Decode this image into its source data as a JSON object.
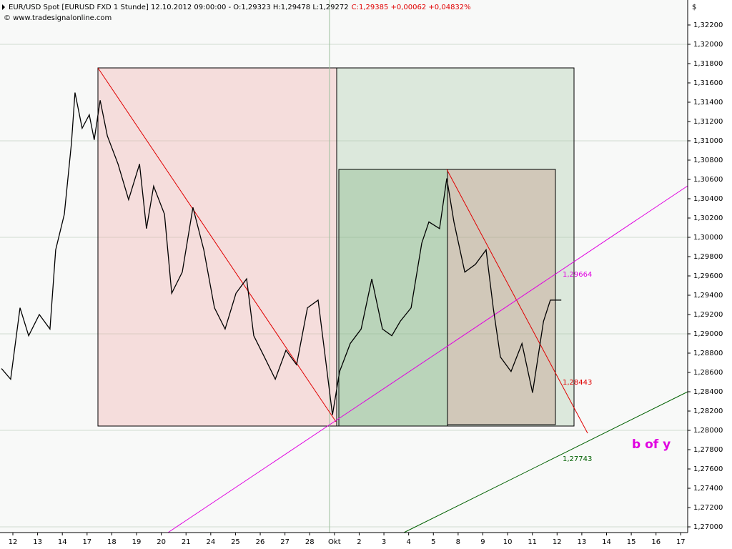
{
  "header": {
    "instrument": "EUR/USD Spot [EURUSD FXD  1 Stunde] 12.10.2012 09:00:00 - O:1,29323 H:1,29478 L:1,29272",
    "close_info": "C:1,29385 +0,00062 +0,04832%",
    "source": "© www.tradesignalonline.com",
    "currency": "$"
  },
  "chart_data": {
    "type": "line",
    "color": "#000000",
    "grid": true,
    "series": [
      {
        "name": "EUR/USD",
        "color": "#000000",
        "x": [
          -0.46,
          -0.09,
          0.29,
          0.64,
          1.07,
          1.5,
          1.73,
          2.08,
          2.37,
          2.51,
          2.8,
          3.09,
          3.29,
          3.53,
          3.82,
          4.25,
          4.68,
          5.12,
          5.4,
          5.69,
          6.13,
          6.42,
          6.85,
          7.28,
          7.72,
          8.15,
          8.58,
          9.02,
          9.45,
          9.74,
          10.17,
          10.61,
          11.04,
          11.47,
          11.91,
          12.34,
          12.63,
          12.92,
          13.21,
          13.64,
          14.08,
          14.51,
          14.94,
          15.32,
          15.66,
          16.1,
          16.53,
          16.82,
          17.25,
          17.54,
          17.83,
          18.27,
          18.7,
          19.13,
          19.42,
          19.71,
          20.14,
          20.58,
          21.01,
          21.45,
          21.73,
          22.17
        ],
        "values": [
          1.2864,
          1.2853,
          1.2927,
          1.2898,
          1.292,
          1.2905,
          1.2987,
          1.3024,
          1.3098,
          1.315,
          1.3113,
          1.3127,
          1.3101,
          1.3142,
          1.3105,
          1.3076,
          1.3039,
          1.3076,
          1.3009,
          1.3053,
          1.3024,
          1.2942,
          1.2964,
          1.3031,
          1.2987,
          1.2927,
          1.2905,
          1.2942,
          1.2957,
          1.2898,
          1.2876,
          1.2853,
          1.2883,
          1.2868,
          1.2927,
          1.2935,
          1.2876,
          1.2816,
          1.2861,
          1.289,
          1.2905,
          1.2957,
          1.2905,
          1.2898,
          1.2913,
          1.2927,
          1.2994,
          1.3016,
          1.3009,
          1.3061,
          1.3016,
          1.2964,
          1.2972,
          1.2987,
          1.2927,
          1.2876,
          1.2861,
          1.289,
          1.2839,
          1.2913,
          1.2935,
          1.2935
        ]
      }
    ],
    "xlim": [
      -0.52,
      27.28
    ],
    "xticks": [
      {
        "value": 0,
        "label": "12"
      },
      {
        "value": 1,
        "label": "13"
      },
      {
        "value": 2,
        "label": "14"
      },
      {
        "value": 3,
        "label": "17"
      },
      {
        "value": 4,
        "label": "18"
      },
      {
        "value": 5,
        "label": "19"
      },
      {
        "value": 6,
        "label": "20"
      },
      {
        "value": 7,
        "label": "21"
      },
      {
        "value": 8,
        "label": "24"
      },
      {
        "value": 9,
        "label": "25"
      },
      {
        "value": 10,
        "label": "26"
      },
      {
        "value": 11,
        "label": "27"
      },
      {
        "value": 12,
        "label": "28"
      },
      {
        "value": 13,
        "label": "Okt"
      },
      {
        "value": 14,
        "label": "2"
      },
      {
        "value": 15,
        "label": "3"
      },
      {
        "value": 16,
        "label": "4"
      },
      {
        "value": 17,
        "label": "5"
      },
      {
        "value": 18,
        "label": "8"
      },
      {
        "value": 19,
        "label": "9"
      },
      {
        "value": 20,
        "label": "10"
      },
      {
        "value": 21,
        "label": "11"
      },
      {
        "value": 22,
        "label": "12"
      },
      {
        "value": 23,
        "label": "13"
      },
      {
        "value": 24,
        "label": "14"
      },
      {
        "value": 25,
        "label": "15"
      },
      {
        "value": 26,
        "label": "16"
      },
      {
        "value": 27,
        "label": "17"
      }
    ],
    "ylim": [
      1.26941,
      1.32459
    ],
    "yticks": [
      {
        "value": 1.27,
        "label": "1,27000"
      },
      {
        "value": 1.272,
        "label": "1,27200"
      },
      {
        "value": 1.274,
        "label": "1,27400"
      },
      {
        "value": 1.276,
        "label": "1,27600"
      },
      {
        "value": 1.278,
        "label": "1,27800"
      },
      {
        "value": 1.28,
        "label": "1,28000"
      },
      {
        "value": 1.282,
        "label": "1,28200"
      },
      {
        "value": 1.284,
        "label": "1,28400"
      },
      {
        "value": 1.286,
        "label": "1,28600"
      },
      {
        "value": 1.288,
        "label": "1,28800"
      },
      {
        "value": 1.29,
        "label": "1,29000"
      },
      {
        "value": 1.292,
        "label": "1,29200"
      },
      {
        "value": 1.294,
        "label": "1,29400"
      },
      {
        "value": 1.296,
        "label": "1,29600"
      },
      {
        "value": 1.298,
        "label": "1,29800"
      },
      {
        "value": 1.3,
        "label": "1,30000"
      },
      {
        "value": 1.302,
        "label": "1,30200"
      },
      {
        "value": 1.304,
        "label": "1,30400"
      },
      {
        "value": 1.306,
        "label": "1,30600"
      },
      {
        "value": 1.308,
        "label": "1,30800"
      },
      {
        "value": 1.31,
        "label": "1,31000"
      },
      {
        "value": 1.312,
        "label": "1,31200"
      },
      {
        "value": 1.314,
        "label": "1,31400"
      },
      {
        "value": 1.316,
        "label": "1,31600"
      },
      {
        "value": 1.318,
        "label": "1,31800"
      },
      {
        "value": 1.32,
        "label": "1,32000"
      },
      {
        "value": 1.322,
        "label": "1,32200"
      }
    ],
    "annotations": {
      "magenta_level": "1,29664",
      "red_level": "1,28443",
      "green_level": "1,27743",
      "wave_label": "b of y"
    }
  }
}
